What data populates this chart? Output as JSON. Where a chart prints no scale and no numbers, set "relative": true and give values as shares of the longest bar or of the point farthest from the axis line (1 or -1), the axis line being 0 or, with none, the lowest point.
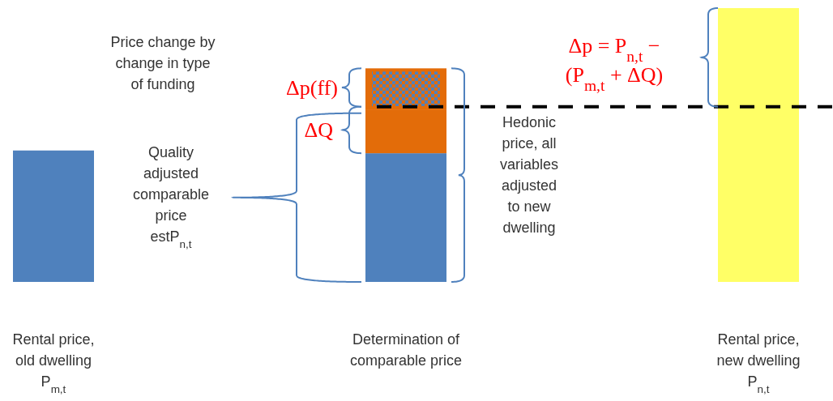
{
  "chart_data": {
    "type": "bar",
    "stacked": true,
    "relative": true,
    "tick_labels": "x",
    "line_style": "dashed",
    "categories": [
      "Rental price,\nold dwelling\nP$_{m,t}$",
      "Determination of\ncomparable price",
      "Rental price,\nnew dwelling\nP$_{n,t}$"
    ],
    "series": [
      {
        "color": "#4f81bd",
        "values": [
          0.48,
          0.47,
          null
        ]
      },
      {
        "color": "#e36c09",
        "values": [
          null,
          0.16,
          null
        ]
      },
      {
        "color": "#e36c09",
        "values": [
          null,
          0.15,
          null
        ]
      },
      {
        "color": "#ffff66",
        "values": [
          null,
          null,
          1
        ]
      }
    ],
    "ref_lines": [
      {
        "axis": "y",
        "value": 0.64,
        "color": "#000000"
      }
    ],
    "annotations": [
      "Price change by\nchange in type\nof funding",
      "Δp(ff)",
      "ΔQ",
      "Quality\nadjusted\ncomparable\nprice\nestP$_{n,t}$",
      "Hedonic\nprice, all\nvariables\nadjusted\nto new\ndwelling",
      "Δp = P$_{n,t}$ −\n(P$_{m,t}$ + ΔQ)"
    ]
  }
}
